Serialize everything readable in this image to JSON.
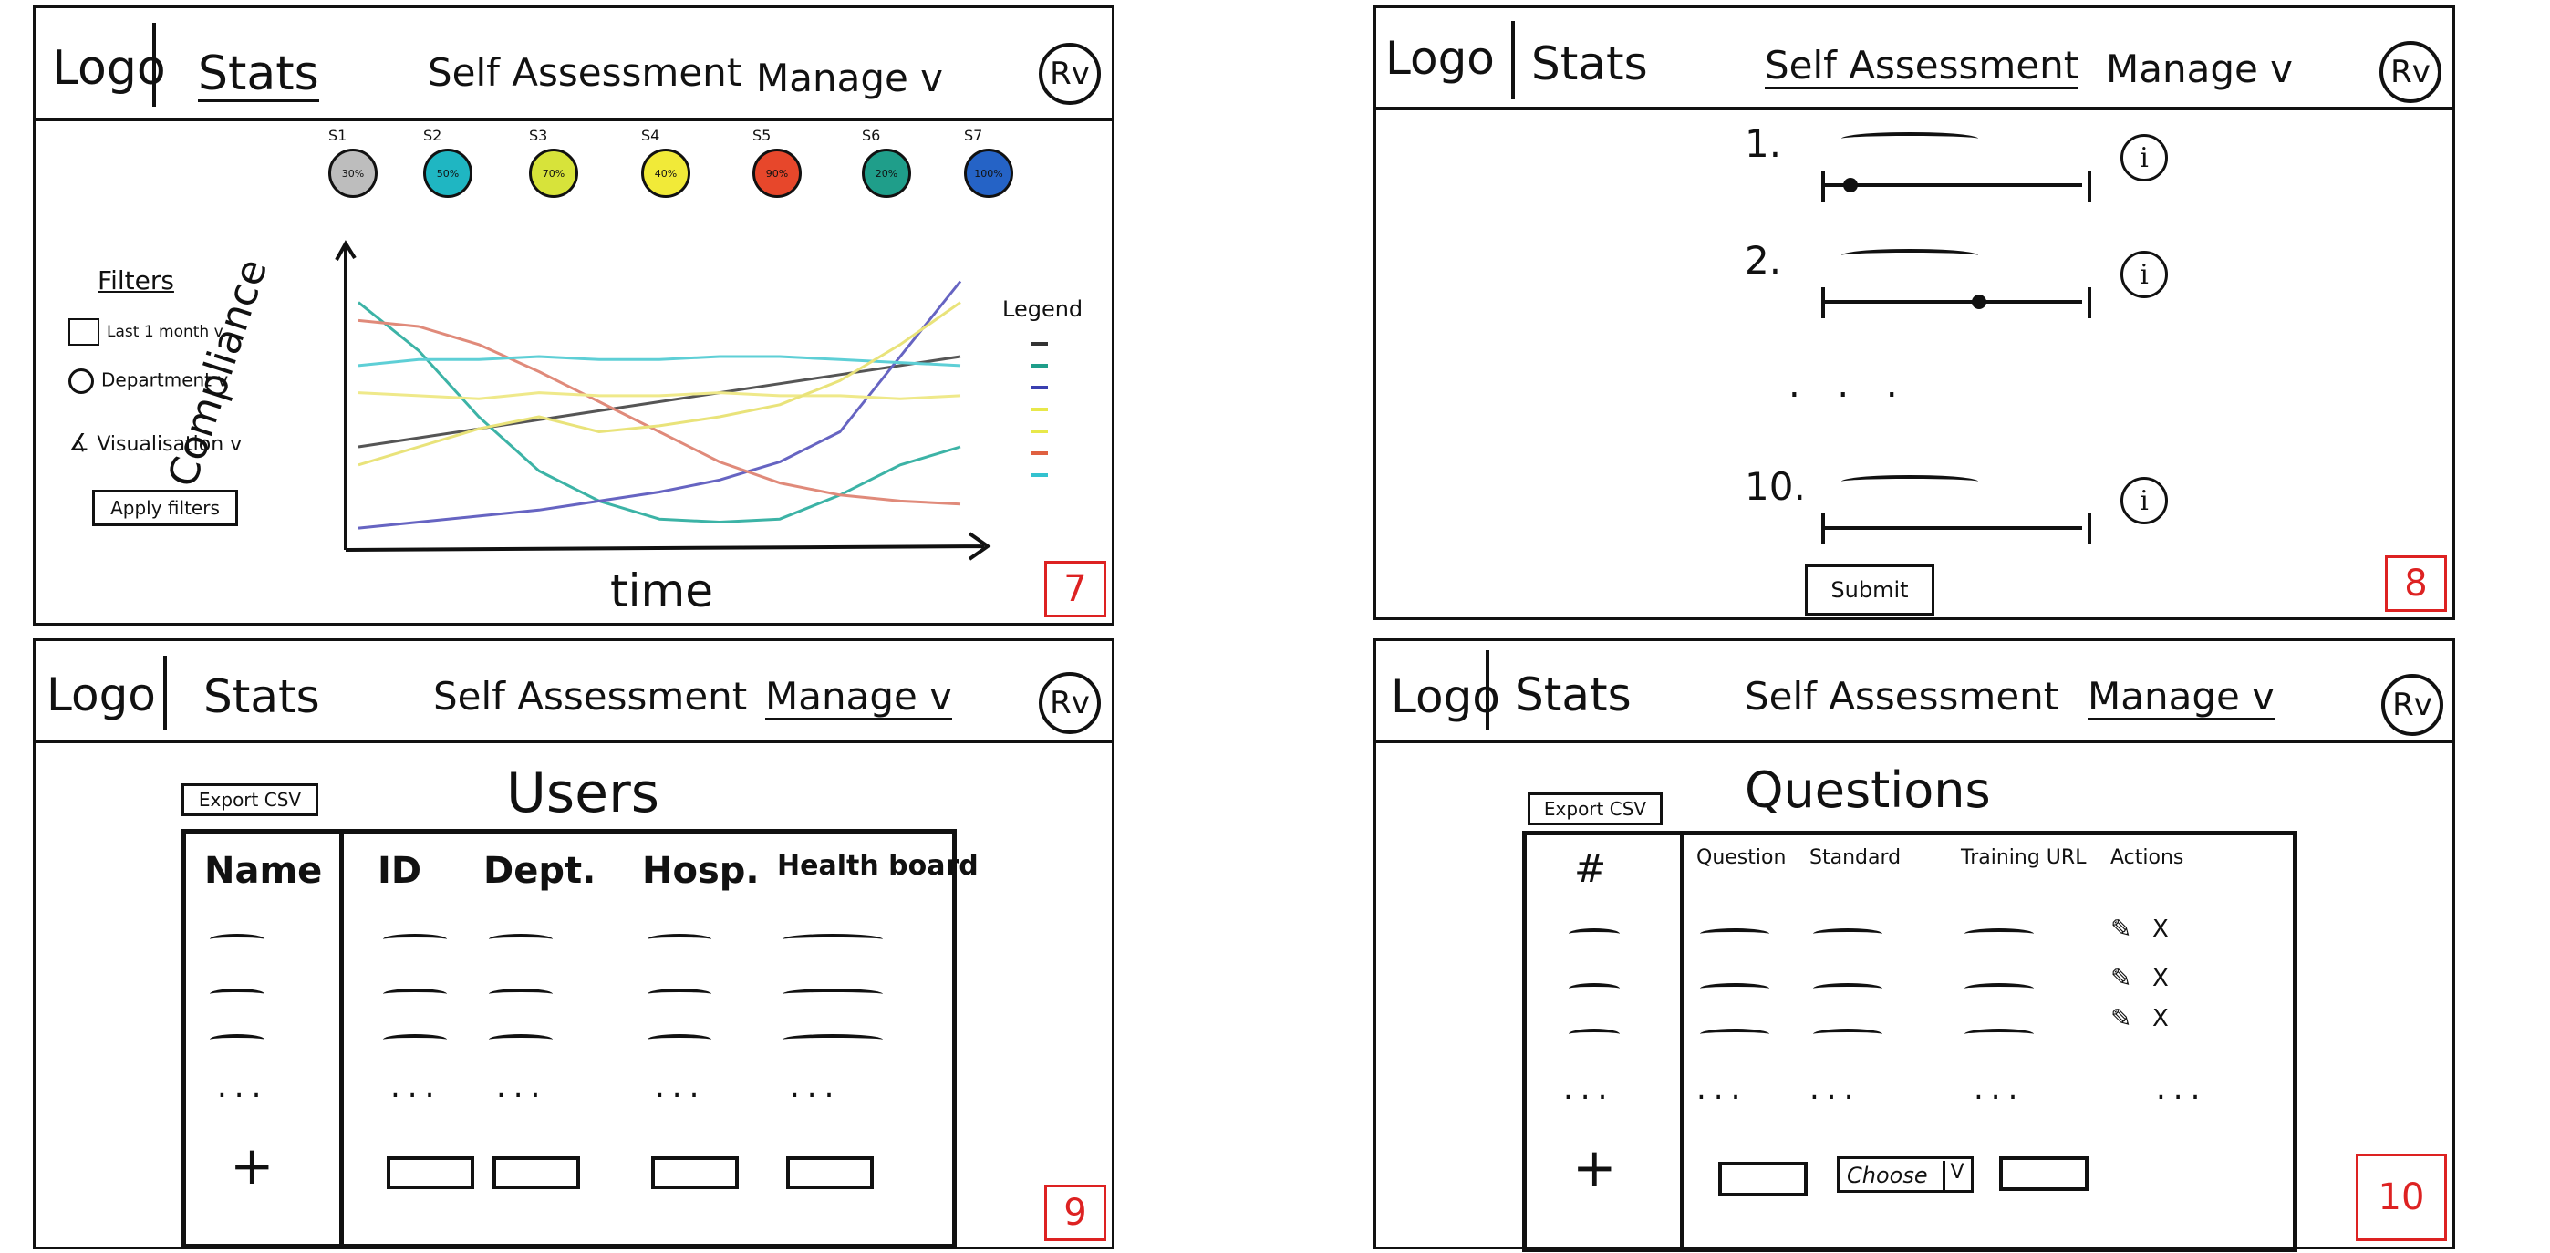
{
  "nav": {
    "logo": "Logo",
    "stats": "Stats",
    "self_assessment": "Self Assessment",
    "manage": "Manage v",
    "avatar": "Rv"
  },
  "panel7": {
    "page_number": "7",
    "stat_circles": [
      {
        "label": "S1",
        "value": "30%",
        "color": "#bdbdbd"
      },
      {
        "label": "S2",
        "value": "50%",
        "color": "#1fb6c2"
      },
      {
        "label": "S3",
        "value": "70%",
        "color": "#d7e33a"
      },
      {
        "label": "S4",
        "value": "40%",
        "color": "#f1ea38"
      },
      {
        "label": "S5",
        "value": "90%",
        "color": "#e7472b"
      },
      {
        "label": "S6",
        "value": "20%",
        "color": "#1f9e8a"
      },
      {
        "label": "S7",
        "value": "100%",
        "color": "#2563c6"
      }
    ],
    "filters": {
      "title": "Filters",
      "period": "Last 1 month v",
      "department": "Department v",
      "visualisation": "Visualisation v",
      "apply": "Apply filters"
    },
    "legend_title": "Legend",
    "legend_colors": [
      "#333333",
      "#1f9e8a",
      "#3a3fb0",
      "#e8e84a",
      "#e8e84a",
      "#e06040",
      "#33c2cf"
    ]
  },
  "chart_data": {
    "type": "line",
    "xlabel": "time",
    "ylabel": "Compliance",
    "x": [
      0,
      1,
      2,
      3,
      4,
      5,
      6,
      7,
      8,
      9,
      10
    ],
    "series": [
      {
        "values": [
          30,
          33,
          36,
          39,
          42,
          45,
          48,
          51,
          54,
          57,
          60
        ],
        "color": "#555555"
      },
      {
        "values": [
          78,
          62,
          40,
          22,
          12,
          6,
          5,
          6,
          14,
          24,
          30
        ],
        "color": "#3cb3a6"
      },
      {
        "values": [
          3,
          5,
          7,
          9,
          12,
          15,
          19,
          25,
          35,
          60,
          85
        ],
        "color": "#6664c2"
      },
      {
        "values": [
          72,
          70,
          64,
          55,
          45,
          35,
          25,
          18,
          14,
          12,
          11
        ],
        "color": "#e08a7a"
      },
      {
        "values": [
          57,
          59,
          59,
          60,
          59,
          59,
          60,
          60,
          59,
          58,
          57
        ],
        "color": "#5ecfd6"
      },
      {
        "values": [
          48,
          47,
          46,
          48,
          47,
          47,
          48,
          47,
          47,
          46,
          47
        ],
        "color": "#efe98a"
      },
      {
        "values": [
          24,
          30,
          36,
          40,
          35,
          37,
          40,
          44,
          52,
          64,
          78
        ],
        "color": "#e9e37a"
      }
    ]
  },
  "panel8": {
    "page_number": "8",
    "questions": [
      {
        "number": "1.",
        "handle": 0.1
      },
      {
        "number": "2.",
        "handle": 0.6
      },
      {
        "number": "10.",
        "handle": null
      }
    ],
    "ellipsis": ". . .",
    "info": "i",
    "submit": "Submit"
  },
  "panel9": {
    "page_number": "9",
    "export": "Export CSV",
    "title": "Users",
    "columns": [
      "Name",
      "ID",
      "Dept.",
      "Hosp.",
      "Health board"
    ],
    "rows_count": 3,
    "ellipsis": "...",
    "add": "+"
  },
  "panel10": {
    "page_number": "10",
    "export": "Export CSV",
    "title": "Questions",
    "columns": [
      "#",
      "Question",
      "Standard",
      "Training URL",
      "Actions"
    ],
    "actions": {
      "edit": "✎",
      "delete": "X"
    },
    "ellipsis": "...",
    "add": "+",
    "choose": "Choose",
    "choose_caret": "V"
  }
}
